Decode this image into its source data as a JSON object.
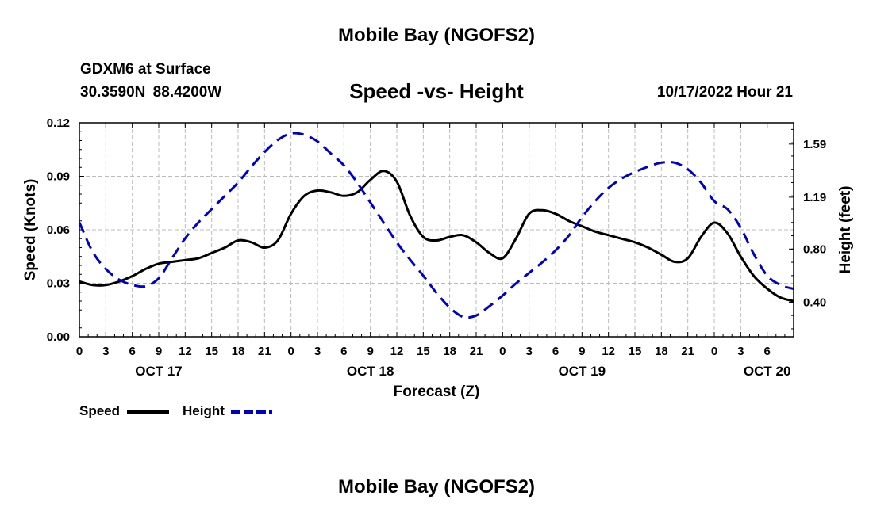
{
  "header": {
    "title": "Mobile Bay (NGOFS2)",
    "station": "GDXM6 at Surface",
    "coords": "30.3590N  88.4200W",
    "chart_title": "Speed -vs- Height",
    "timestamp": "10/17/2022 Hour 21",
    "bottom_title": "Mobile Bay (NGOFS2)"
  },
  "colors": {
    "speed": "#000000",
    "height": "#0000cc",
    "grid": "#bbbbbb"
  },
  "chart_data": {
    "type": "line",
    "title": "Speed -vs- Height",
    "xlabel": "Forecast (Z)",
    "ylabel": "Speed (Knots)",
    "y2label": "Height (feet)",
    "x_range_hours": [
      0,
      81
    ],
    "x_tick_step_hours": 3,
    "x_tick_labels": [
      "0",
      "3",
      "6",
      "9",
      "12",
      "15",
      "18",
      "21",
      "0",
      "3",
      "6",
      "9",
      "12",
      "15",
      "18",
      "21",
      "0",
      "3",
      "6",
      "9",
      "12",
      "15",
      "18",
      "21",
      "0",
      "3",
      "6"
    ],
    "date_labels": [
      {
        "hour": 9,
        "label": "OCT 17"
      },
      {
        "hour": 33,
        "label": "OCT 18"
      },
      {
        "hour": 57,
        "label": "OCT 19"
      },
      {
        "hour": 78,
        "label": "OCT 20"
      }
    ],
    "ylim": [
      0,
      0.12
    ],
    "y_ticks": [
      "0.00",
      "0.03",
      "0.06",
      "0.09",
      "0.12"
    ],
    "y2lim": [
      0.14,
      1.75
    ],
    "y2_ticks": [
      "0.40",
      "0.80",
      "1.19",
      "1.59"
    ],
    "legend": {
      "position": "bottom-left",
      "speed_label": "Speed",
      "height_label": "Height"
    },
    "series": [
      {
        "name": "Speed",
        "axis": "left",
        "style": "solid",
        "x": [
          0,
          1.5,
          3,
          4.5,
          6,
          7.5,
          9,
          10.5,
          12,
          13.5,
          15,
          16.5,
          18,
          19.5,
          21,
          22.5,
          24,
          25.5,
          27,
          28.5,
          30,
          31.5,
          33,
          34.5,
          36,
          37.5,
          39,
          40.5,
          42,
          43.5,
          45,
          46.5,
          48,
          49.5,
          51,
          52.5,
          54,
          55.5,
          57,
          58.5,
          60,
          61.5,
          63,
          64.5,
          66,
          67.5,
          69,
          70.5,
          72,
          73.5,
          75,
          76.5,
          78,
          79.5,
          81
        ],
        "values": [
          0.031,
          0.029,
          0.029,
          0.031,
          0.034,
          0.038,
          0.041,
          0.042,
          0.043,
          0.044,
          0.047,
          0.05,
          0.054,
          0.053,
          0.05,
          0.054,
          0.069,
          0.079,
          0.082,
          0.081,
          0.079,
          0.081,
          0.088,
          0.093,
          0.087,
          0.068,
          0.056,
          0.054,
          0.056,
          0.057,
          0.053,
          0.047,
          0.044,
          0.055,
          0.069,
          0.071,
          0.069,
          0.065,
          0.062,
          0.059,
          0.057,
          0.055,
          0.053,
          0.05,
          0.046,
          0.042,
          0.044,
          0.056,
          0.064,
          0.058,
          0.045,
          0.034,
          0.027,
          0.022,
          0.02
        ]
      },
      {
        "name": "Height",
        "axis": "right",
        "style": "dashed",
        "x": [
          0,
          1.5,
          3,
          4.5,
          6,
          7.5,
          9,
          10.5,
          12,
          13.5,
          15,
          16.5,
          18,
          19.5,
          21,
          22.5,
          24,
          25.5,
          27,
          28.5,
          30,
          31.5,
          33,
          34.5,
          36,
          37.5,
          39,
          40.5,
          42,
          43.5,
          45,
          46.5,
          48,
          49.5,
          51,
          52.5,
          54,
          55.5,
          57,
          58.5,
          60,
          61.5,
          63,
          64.5,
          66,
          67.5,
          69,
          70.5,
          72,
          73.5,
          75,
          76.5,
          78,
          79.5,
          81
        ],
        "values": [
          1.0,
          0.78,
          0.65,
          0.57,
          0.53,
          0.52,
          0.58,
          0.73,
          0.88,
          1.0,
          1.1,
          1.2,
          1.3,
          1.42,
          1.53,
          1.62,
          1.67,
          1.66,
          1.61,
          1.52,
          1.43,
          1.3,
          1.15,
          1.0,
          0.85,
          0.72,
          0.6,
          0.47,
          0.36,
          0.29,
          0.3,
          0.37,
          0.45,
          0.54,
          0.62,
          0.7,
          0.79,
          0.9,
          1.04,
          1.16,
          1.26,
          1.33,
          1.38,
          1.42,
          1.45,
          1.45,
          1.4,
          1.3,
          1.16,
          1.1,
          0.96,
          0.76,
          0.6,
          0.53,
          0.5
        ]
      }
    ]
  }
}
